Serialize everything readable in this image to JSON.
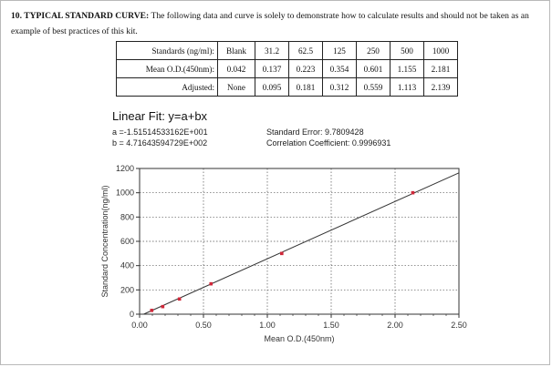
{
  "intro": {
    "heading": "10. TYPICAL STANDARD CURVE:",
    "text": "The following data and curve is solely to demonstrate how to calculate results and should not be taken as an example of best practices of this kit."
  },
  "table": {
    "rows": [
      {
        "label": "Standards (ng/ml):",
        "cells": [
          "Blank",
          "31.2",
          "62.5",
          "125",
          "250",
          "500",
          "1000"
        ]
      },
      {
        "label": "Mean O.D.(450nm):",
        "cells": [
          "0.042",
          "0.137",
          "0.223",
          "0.354",
          "0.601",
          "1.155",
          "2.181"
        ]
      },
      {
        "label": "Adjusted:",
        "cells": [
          "None",
          "0.095",
          "0.181",
          "0.312",
          "0.559",
          "1.113",
          "2.139"
        ]
      }
    ]
  },
  "fit": {
    "title": "Linear Fit: y=a+bx",
    "a": "a =-1.51514533162E+001",
    "b": "b = 4.71643594729E+002",
    "std_error": "Standard Error: 9.7809428",
    "corr": "Correlation Coefficient: 0.9996931"
  },
  "chart_data": {
    "type": "scatter",
    "xlabel": "Mean O.D.(450nm)",
    "ylabel": "Standard Concentration(ng/ml)",
    "xlim": [
      0,
      2.5
    ],
    "ylim": [
      0,
      1200
    ],
    "x_ticks": [
      "0.00",
      "0.50",
      "1.00",
      "1.50",
      "2.00",
      "2.50"
    ],
    "y_ticks": [
      "0",
      "200",
      "400",
      "600",
      "800",
      "1000",
      "1200"
    ],
    "grid": true,
    "points": [
      {
        "x": 0.095,
        "y": 31.2
      },
      {
        "x": 0.181,
        "y": 62.5
      },
      {
        "x": 0.312,
        "y": 125
      },
      {
        "x": 0.559,
        "y": 250
      },
      {
        "x": 1.113,
        "y": 500
      },
      {
        "x": 2.139,
        "y": 1000
      }
    ],
    "fit_line": {
      "intercept": -15.1514533162,
      "slope": 471.643594729
    },
    "colors": {
      "point": "#d0283a",
      "line": "#333333",
      "grid": "#555555"
    }
  }
}
